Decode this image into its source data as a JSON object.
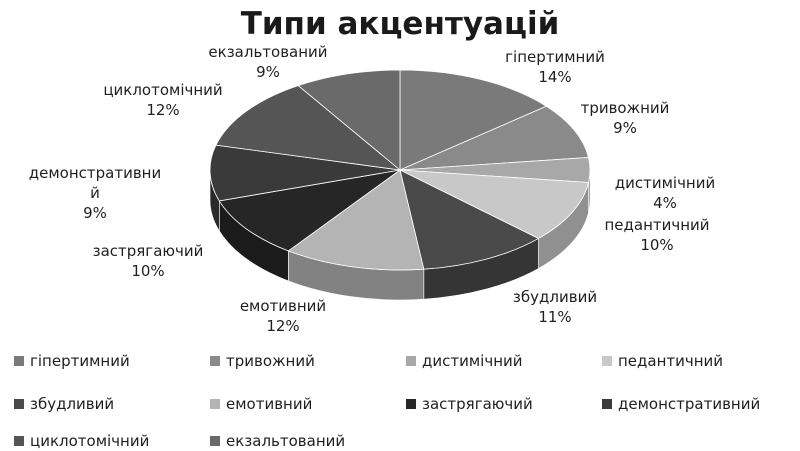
{
  "chart_data": {
    "type": "pie",
    "title": "Типи акцентуацій",
    "categories": [
      "гіпертимний",
      "тривожний",
      "дистимічний",
      "педантичний",
      "збудливий",
      "емотивний",
      "застрягаючий",
      "демонстративний",
      "циклотомічний",
      "екзальтований"
    ],
    "values": [
      14,
      9,
      4,
      10,
      11,
      12,
      10,
      9,
      12,
      9
    ],
    "value_labels": [
      "14%",
      "9%",
      "4%",
      "10%",
      "11%",
      "12%",
      "10%",
      "9%",
      "12%",
      "9%"
    ],
    "slice_labels": [
      "гіпертимний",
      "тривожний",
      "дистимічний",
      "педантичний",
      "збудливий",
      "емотивний",
      "застрягаючий",
      "демонстративни-й",
      "циклотомічний",
      "екзальтований"
    ],
    "colors": [
      "#7a7a7a",
      "#8a8a8a",
      "#a8a8a8",
      "#c8c8c8",
      "#4a4a4a",
      "#b4b4b4",
      "#262626",
      "#3a3a3a",
      "#555555",
      "#6a6a6a"
    ],
    "legend_position": "bottom",
    "style": "3d-pie"
  }
}
